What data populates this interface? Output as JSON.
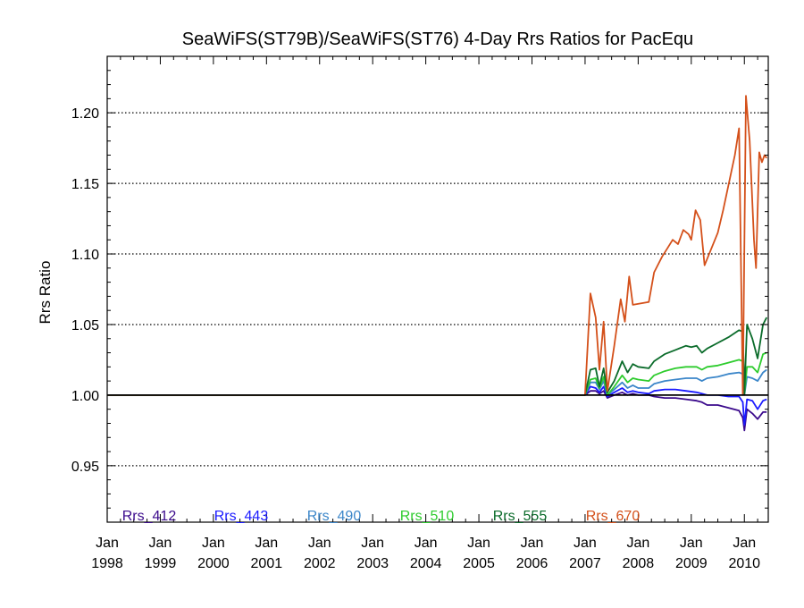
{
  "chart_data": {
    "type": "line",
    "title": "SeaWiFS(ST79B)/SeaWiFS(ST76) 4-Day Rrs Ratios for PacEqu",
    "xlabel": "",
    "ylabel": "Rrs Ratio",
    "xlim": [
      1998.0,
      2010.45
    ],
    "ylim": [
      0.91,
      1.24
    ],
    "grid": "horizontal dotted at y ticks",
    "legend": "bottom-left inside plot, horizontal row",
    "x_ticks": [
      {
        "month": "Jan",
        "year": "1998",
        "value": 1998
      },
      {
        "month": "Jan",
        "year": "1999",
        "value": 1999
      },
      {
        "month": "Jan",
        "year": "2000",
        "value": 2000
      },
      {
        "month": "Jan",
        "year": "2001",
        "value": 2001
      },
      {
        "month": "Jan",
        "year": "2002",
        "value": 2002
      },
      {
        "month": "Jan",
        "year": "2003",
        "value": 2003
      },
      {
        "month": "Jan",
        "year": "2004",
        "value": 2004
      },
      {
        "month": "Jan",
        "year": "2005",
        "value": 2005
      },
      {
        "month": "Jan",
        "year": "2006",
        "value": 2006
      },
      {
        "month": "Jan",
        "year": "2007",
        "value": 2007
      },
      {
        "month": "Jan",
        "year": "2008",
        "value": 2008
      },
      {
        "month": "Jan",
        "year": "2009",
        "value": 2009
      },
      {
        "month": "Jan",
        "year": "2010",
        "value": 2010
      }
    ],
    "y_ticks": [
      {
        "label": "0.95",
        "value": 0.95
      },
      {
        "label": "1.00",
        "value": 1.0
      },
      {
        "label": "1.05",
        "value": 1.05
      },
      {
        "label": "1.10",
        "value": 1.1
      },
      {
        "label": "1.15",
        "value": 1.15
      },
      {
        "label": "1.20",
        "value": 1.2
      }
    ],
    "reference_line": {
      "y": 1.0,
      "color": "#000000"
    },
    "series": [
      {
        "name": "Rrs_412",
        "color": "#3b0a8c",
        "points": [
          [
            1998.0,
            1.0
          ],
          [
            2007.0,
            1.0
          ],
          [
            2007.1,
            1.003
          ],
          [
            2007.2,
            1.003
          ],
          [
            2007.27,
            1.001
          ],
          [
            2007.35,
            1.003
          ],
          [
            2007.42,
            0.998
          ],
          [
            2007.55,
            1.0
          ],
          [
            2007.7,
            1.002
          ],
          [
            2007.8,
            1.0
          ],
          [
            2007.9,
            1.001
          ],
          [
            2008.0,
            1.0
          ],
          [
            2008.2,
            1.0
          ],
          [
            2008.3,
            0.999
          ],
          [
            2008.5,
            0.998
          ],
          [
            2008.7,
            0.998
          ],
          [
            2008.9,
            0.997
          ],
          [
            2009.1,
            0.996
          ],
          [
            2009.2,
            0.995
          ],
          [
            2009.3,
            0.993
          ],
          [
            2009.5,
            0.993
          ],
          [
            2009.7,
            0.991
          ],
          [
            2009.9,
            0.989
          ],
          [
            2009.97,
            0.984
          ],
          [
            2010.0,
            0.975
          ],
          [
            2010.05,
            0.99
          ],
          [
            2010.15,
            0.987
          ],
          [
            2010.25,
            0.983
          ],
          [
            2010.35,
            0.988
          ],
          [
            2010.42,
            0.988
          ]
        ]
      },
      {
        "name": "Rrs_443",
        "color": "#1a1aff",
        "points": [
          [
            1998.0,
            1.0
          ],
          [
            2007.0,
            1.0
          ],
          [
            2007.1,
            1.006
          ],
          [
            2007.2,
            1.005
          ],
          [
            2007.27,
            1.002
          ],
          [
            2007.35,
            1.006
          ],
          [
            2007.42,
            0.999
          ],
          [
            2007.55,
            1.002
          ],
          [
            2007.7,
            1.005
          ],
          [
            2007.8,
            1.002
          ],
          [
            2007.9,
            1.003
          ],
          [
            2008.0,
            1.002
          ],
          [
            2008.2,
            1.001
          ],
          [
            2008.3,
            1.003
          ],
          [
            2008.5,
            1.004
          ],
          [
            2008.7,
            1.004
          ],
          [
            2008.9,
            1.003
          ],
          [
            2009.1,
            1.002
          ],
          [
            2009.2,
            1.001
          ],
          [
            2009.3,
            1.0
          ],
          [
            2009.5,
            1.0
          ],
          [
            2009.7,
            0.999
          ],
          [
            2009.9,
            0.999
          ],
          [
            2009.97,
            0.995
          ],
          [
            2010.0,
            0.979
          ],
          [
            2010.05,
            0.997
          ],
          [
            2010.15,
            0.996
          ],
          [
            2010.25,
            0.99
          ],
          [
            2010.35,
            0.996
          ],
          [
            2010.42,
            0.997
          ]
        ]
      },
      {
        "name": "Rrs_490",
        "color": "#3b86c9",
        "points": [
          [
            1998.0,
            1.0
          ],
          [
            2007.0,
            1.0
          ],
          [
            2007.1,
            1.009
          ],
          [
            2007.2,
            1.009
          ],
          [
            2007.27,
            1.004
          ],
          [
            2007.35,
            1.01
          ],
          [
            2007.42,
            1.0
          ],
          [
            2007.55,
            1.004
          ],
          [
            2007.7,
            1.009
          ],
          [
            2007.8,
            1.005
          ],
          [
            2007.9,
            1.007
          ],
          [
            2008.0,
            1.005
          ],
          [
            2008.2,
            1.005
          ],
          [
            2008.3,
            1.008
          ],
          [
            2008.5,
            1.01
          ],
          [
            2008.7,
            1.011
          ],
          [
            2008.9,
            1.012
          ],
          [
            2009.1,
            1.012
          ],
          [
            2009.2,
            1.01
          ],
          [
            2009.3,
            1.012
          ],
          [
            2009.5,
            1.013
          ],
          [
            2009.7,
            1.015
          ],
          [
            2009.9,
            1.016
          ],
          [
            2009.97,
            1.015
          ],
          [
            2010.0,
            1.0
          ],
          [
            2010.05,
            1.013
          ],
          [
            2010.15,
            1.012
          ],
          [
            2010.25,
            1.01
          ],
          [
            2010.35,
            1.016
          ],
          [
            2010.42,
            1.018
          ]
        ]
      },
      {
        "name": "Rrs_510",
        "color": "#2ecc2e",
        "points": [
          [
            1998.0,
            1.0
          ],
          [
            2007.0,
            1.0
          ],
          [
            2007.1,
            1.011
          ],
          [
            2007.2,
            1.012
          ],
          [
            2007.27,
            1.005
          ],
          [
            2007.35,
            1.013
          ],
          [
            2007.42,
            1.0
          ],
          [
            2007.55,
            1.006
          ],
          [
            2007.7,
            1.014
          ],
          [
            2007.8,
            1.009
          ],
          [
            2007.9,
            1.012
          ],
          [
            2008.0,
            1.011
          ],
          [
            2008.2,
            1.01
          ],
          [
            2008.3,
            1.014
          ],
          [
            2008.5,
            1.017
          ],
          [
            2008.7,
            1.019
          ],
          [
            2008.9,
            1.02
          ],
          [
            2009.1,
            1.02
          ],
          [
            2009.2,
            1.018
          ],
          [
            2009.3,
            1.02
          ],
          [
            2009.5,
            1.021
          ],
          [
            2009.7,
            1.023
          ],
          [
            2009.9,
            1.025
          ],
          [
            2009.97,
            1.024
          ],
          [
            2010.0,
            1.001
          ],
          [
            2010.05,
            1.02
          ],
          [
            2010.15,
            1.02
          ],
          [
            2010.25,
            1.016
          ],
          [
            2010.35,
            1.029
          ],
          [
            2010.42,
            1.03
          ]
        ]
      },
      {
        "name": "Rrs_555",
        "color": "#0a6b2a",
        "points": [
          [
            1998.0,
            1.0
          ],
          [
            2007.0,
            1.0
          ],
          [
            2007.1,
            1.018
          ],
          [
            2007.2,
            1.019
          ],
          [
            2007.27,
            1.006
          ],
          [
            2007.35,
            1.019
          ],
          [
            2007.42,
            1.002
          ],
          [
            2007.55,
            1.01
          ],
          [
            2007.7,
            1.024
          ],
          [
            2007.8,
            1.016
          ],
          [
            2007.9,
            1.022
          ],
          [
            2008.0,
            1.02
          ],
          [
            2008.2,
            1.019
          ],
          [
            2008.3,
            1.024
          ],
          [
            2008.5,
            1.029
          ],
          [
            2008.7,
            1.032
          ],
          [
            2008.9,
            1.035
          ],
          [
            2009.0,
            1.034
          ],
          [
            2009.1,
            1.035
          ],
          [
            2009.2,
            1.03
          ],
          [
            2009.3,
            1.033
          ],
          [
            2009.5,
            1.037
          ],
          [
            2009.7,
            1.041
          ],
          [
            2009.9,
            1.046
          ],
          [
            2009.97,
            1.045
          ],
          [
            2010.0,
            1.001
          ],
          [
            2010.05,
            1.05
          ],
          [
            2010.15,
            1.04
          ],
          [
            2010.25,
            1.026
          ],
          [
            2010.35,
            1.05
          ],
          [
            2010.42,
            1.055
          ]
        ]
      },
      {
        "name": "Rrs_670",
        "color": "#d4501a",
        "points": [
          [
            1998.0,
            1.0
          ],
          [
            2007.0,
            1.0
          ],
          [
            2007.1,
            1.072
          ],
          [
            2007.2,
            1.055
          ],
          [
            2007.27,
            1.018
          ],
          [
            2007.35,
            1.052
          ],
          [
            2007.42,
            1.003
          ],
          [
            2007.55,
            1.035
          ],
          [
            2007.67,
            1.068
          ],
          [
            2007.75,
            1.052
          ],
          [
            2007.83,
            1.084
          ],
          [
            2007.9,
            1.064
          ],
          [
            2008.2,
            1.066
          ],
          [
            2008.3,
            1.087
          ],
          [
            2008.45,
            1.098
          ],
          [
            2008.55,
            1.104
          ],
          [
            2008.65,
            1.11
          ],
          [
            2008.75,
            1.107
          ],
          [
            2008.85,
            1.117
          ],
          [
            2008.95,
            1.114
          ],
          [
            2009.0,
            1.11
          ],
          [
            2009.08,
            1.131
          ],
          [
            2009.17,
            1.124
          ],
          [
            2009.25,
            1.092
          ],
          [
            2009.5,
            1.115
          ],
          [
            2009.6,
            1.131
          ],
          [
            2009.82,
            1.17
          ],
          [
            2009.9,
            1.189
          ],
          [
            2009.97,
            1.0
          ],
          [
            2010.03,
            1.212
          ],
          [
            2010.1,
            1.18
          ],
          [
            2010.18,
            1.11
          ],
          [
            2010.22,
            1.09
          ],
          [
            2010.28,
            1.172
          ],
          [
            2010.33,
            1.165
          ],
          [
            2010.38,
            1.17
          ],
          [
            2010.42,
            1.168
          ]
        ]
      }
    ]
  }
}
